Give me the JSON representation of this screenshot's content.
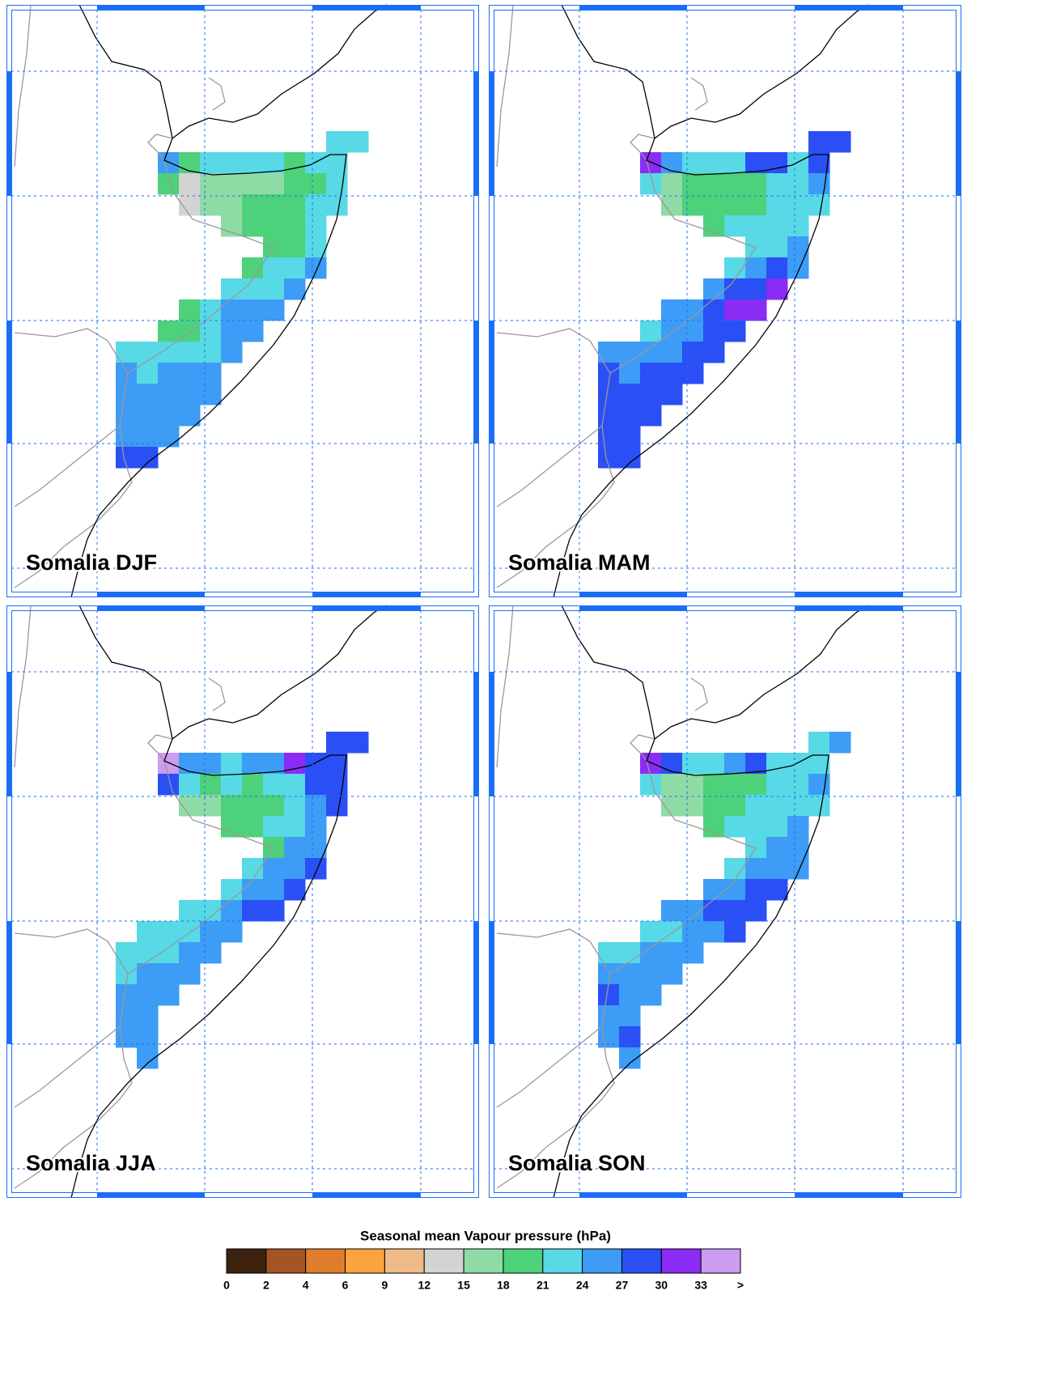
{
  "panels": [
    {
      "title": "Somalia DJF",
      "grid": [
        [
          null,
          null,
          null,
          null,
          null,
          null,
          null,
          null,
          null,
          null,
          22.5,
          22.5
        ],
        [
          null,
          null,
          25.5,
          19.5,
          22.5,
          22.5,
          22.5,
          22.5,
          19.5,
          22.5,
          22.5,
          null
        ],
        [
          null,
          null,
          19.5,
          13.5,
          16.5,
          16.5,
          16.5,
          16.5,
          19.5,
          19.5,
          22.5,
          null
        ],
        [
          null,
          null,
          null,
          13.5,
          16.5,
          16.5,
          19.5,
          19.5,
          19.5,
          22.5,
          22.5,
          null
        ],
        [
          null,
          null,
          null,
          null,
          null,
          16.5,
          19.5,
          19.5,
          19.5,
          22.5,
          null,
          null
        ],
        [
          null,
          null,
          null,
          null,
          null,
          null,
          null,
          19.5,
          19.5,
          22.5,
          null,
          null
        ],
        [
          null,
          null,
          null,
          null,
          null,
          null,
          19.5,
          22.5,
          22.5,
          25.5,
          null,
          null
        ],
        [
          null,
          null,
          null,
          null,
          null,
          22.5,
          22.5,
          22.5,
          25.5,
          null,
          null,
          null
        ],
        [
          null,
          null,
          null,
          19.5,
          22.5,
          25.5,
          25.5,
          25.5,
          null,
          null,
          null,
          null
        ],
        [
          null,
          null,
          19.5,
          19.5,
          22.5,
          25.5,
          25.5,
          null,
          null,
          null,
          null,
          null
        ],
        [
          22.5,
          22.5,
          22.5,
          22.5,
          22.5,
          25.5,
          null,
          null,
          null,
          null,
          null,
          null
        ],
        [
          25.5,
          22.5,
          25.5,
          25.5,
          25.5,
          null,
          null,
          null,
          null,
          null,
          null,
          null
        ],
        [
          25.5,
          25.5,
          25.5,
          25.5,
          25.5,
          null,
          null,
          null,
          null,
          null,
          null,
          null
        ],
        [
          25.5,
          25.5,
          25.5,
          25.5,
          null,
          null,
          null,
          null,
          null,
          null,
          null,
          null
        ],
        [
          25.5,
          25.5,
          25.5,
          null,
          null,
          null,
          null,
          null,
          null,
          null,
          null,
          null
        ],
        [
          28.5,
          28.5,
          null,
          null,
          null,
          null,
          null,
          null,
          null,
          null,
          null,
          null
        ]
      ]
    },
    {
      "title": "Somalia MAM",
      "grid": [
        [
          null,
          null,
          null,
          null,
          null,
          null,
          null,
          null,
          null,
          null,
          28.5,
          28.5
        ],
        [
          null,
          null,
          31.5,
          25.5,
          22.5,
          22.5,
          22.5,
          28.5,
          28.5,
          22.5,
          28.5,
          null
        ],
        [
          null,
          null,
          22.5,
          16.5,
          19.5,
          19.5,
          19.5,
          19.5,
          22.5,
          22.5,
          25.5,
          null
        ],
        [
          null,
          null,
          null,
          16.5,
          19.5,
          19.5,
          19.5,
          19.5,
          22.5,
          22.5,
          22.5,
          null
        ],
        [
          null,
          null,
          null,
          null,
          null,
          19.5,
          22.5,
          22.5,
          22.5,
          22.5,
          null,
          null
        ],
        [
          null,
          null,
          null,
          null,
          null,
          null,
          null,
          22.5,
          22.5,
          25.5,
          null,
          null
        ],
        [
          null,
          null,
          null,
          null,
          null,
          null,
          22.5,
          25.5,
          28.5,
          25.5,
          null,
          null
        ],
        [
          null,
          null,
          null,
          null,
          null,
          25.5,
          28.5,
          28.5,
          31.5,
          null,
          null,
          null
        ],
        [
          null,
          null,
          null,
          25.5,
          25.5,
          28.5,
          31.5,
          31.5,
          null,
          null,
          null,
          null
        ],
        [
          null,
          null,
          22.5,
          25.5,
          25.5,
          28.5,
          28.5,
          null,
          null,
          null,
          null,
          null
        ],
        [
          25.5,
          25.5,
          25.5,
          25.5,
          28.5,
          28.5,
          null,
          null,
          null,
          null,
          null,
          null
        ],
        [
          28.5,
          25.5,
          28.5,
          28.5,
          28.5,
          null,
          null,
          null,
          null,
          null,
          null,
          null
        ],
        [
          28.5,
          28.5,
          28.5,
          28.5,
          null,
          null,
          null,
          null,
          null,
          null,
          null,
          null
        ],
        [
          28.5,
          28.5,
          28.5,
          null,
          null,
          null,
          null,
          null,
          null,
          null,
          null,
          null
        ],
        [
          28.5,
          28.5,
          null,
          null,
          null,
          null,
          null,
          null,
          null,
          null,
          null,
          null
        ],
        [
          28.5,
          28.5,
          null,
          null,
          null,
          null,
          null,
          null,
          null,
          null,
          null,
          null
        ]
      ]
    },
    {
      "title": "Somalia JJA",
      "grid": [
        [
          null,
          null,
          null,
          null,
          null,
          null,
          null,
          null,
          null,
          null,
          28.5,
          28.5
        ],
        [
          null,
          null,
          34,
          25.5,
          25.5,
          22.5,
          25.5,
          25.5,
          31.5,
          28.5,
          28.5,
          null
        ],
        [
          null,
          null,
          28.5,
          22.5,
          19.5,
          22.5,
          19.5,
          22.5,
          22.5,
          28.5,
          28.5,
          null
        ],
        [
          null,
          null,
          null,
          16.5,
          16.5,
          19.5,
          19.5,
          19.5,
          22.5,
          25.5,
          28.5,
          null
        ],
        [
          null,
          null,
          null,
          null,
          null,
          19.5,
          19.5,
          22.5,
          22.5,
          25.5,
          null,
          null
        ],
        [
          null,
          null,
          null,
          null,
          null,
          null,
          null,
          19.5,
          25.5,
          25.5,
          null,
          null
        ],
        [
          null,
          null,
          null,
          null,
          null,
          null,
          22.5,
          25.5,
          25.5,
          28.5,
          null,
          null
        ],
        [
          null,
          null,
          null,
          null,
          null,
          22.5,
          25.5,
          25.5,
          28.5,
          null,
          null,
          null
        ],
        [
          null,
          null,
          null,
          22.5,
          22.5,
          25.5,
          28.5,
          28.5,
          null,
          null,
          null,
          null
        ],
        [
          null,
          22.5,
          22.5,
          22.5,
          25.5,
          25.5,
          null,
          null,
          null,
          null,
          null,
          null
        ],
        [
          22.5,
          22.5,
          22.5,
          25.5,
          25.5,
          null,
          null,
          null,
          null,
          null,
          null,
          null
        ],
        [
          22.5,
          25.5,
          25.5,
          25.5,
          null,
          null,
          null,
          null,
          null,
          null,
          null,
          null
        ],
        [
          25.5,
          25.5,
          25.5,
          null,
          null,
          null,
          null,
          null,
          null,
          null,
          null,
          null
        ],
        [
          25.5,
          25.5,
          null,
          null,
          null,
          null,
          null,
          null,
          null,
          null,
          null,
          null
        ],
        [
          25.5,
          25.5,
          null,
          null,
          null,
          null,
          null,
          null,
          null,
          null,
          null,
          null
        ],
        [
          null,
          25.5,
          null,
          null,
          null,
          null,
          null,
          null,
          null,
          null,
          null,
          null
        ]
      ]
    },
    {
      "title": "Somalia SON",
      "grid": [
        [
          null,
          null,
          null,
          null,
          null,
          null,
          null,
          null,
          null,
          null,
          22.5,
          25.5
        ],
        [
          null,
          null,
          31.5,
          28.5,
          22.5,
          22.5,
          25.5,
          28.5,
          22.5,
          22.5,
          22.5,
          null
        ],
        [
          null,
          null,
          22.5,
          16.5,
          16.5,
          19.5,
          19.5,
          19.5,
          22.5,
          22.5,
          25.5,
          null
        ],
        [
          null,
          null,
          null,
          16.5,
          16.5,
          19.5,
          19.5,
          22.5,
          22.5,
          22.5,
          22.5,
          null
        ],
        [
          null,
          null,
          null,
          null,
          null,
          19.5,
          22.5,
          22.5,
          22.5,
          25.5,
          null,
          null
        ],
        [
          null,
          null,
          null,
          null,
          null,
          null,
          null,
          22.5,
          25.5,
          25.5,
          null,
          null
        ],
        [
          null,
          null,
          null,
          null,
          null,
          null,
          22.5,
          25.5,
          25.5,
          25.5,
          null,
          null
        ],
        [
          null,
          null,
          null,
          null,
          null,
          25.5,
          25.5,
          28.5,
          28.5,
          null,
          null,
          null
        ],
        [
          null,
          null,
          null,
          25.5,
          25.5,
          28.5,
          28.5,
          28.5,
          null,
          null,
          null,
          null
        ],
        [
          null,
          null,
          22.5,
          22.5,
          25.5,
          25.5,
          28.5,
          null,
          null,
          null,
          null,
          null
        ],
        [
          22.5,
          22.5,
          25.5,
          25.5,
          25.5,
          null,
          null,
          null,
          null,
          null,
          null,
          null
        ],
        [
          25.5,
          25.5,
          25.5,
          25.5,
          null,
          null,
          null,
          null,
          null,
          null,
          null,
          null
        ],
        [
          28.5,
          25.5,
          25.5,
          null,
          null,
          null,
          null,
          null,
          null,
          null,
          null,
          null
        ],
        [
          25.5,
          25.5,
          null,
          null,
          null,
          null,
          null,
          null,
          null,
          null,
          null,
          null
        ],
        [
          25.5,
          28.5,
          null,
          null,
          null,
          null,
          null,
          null,
          null,
          null,
          null,
          null
        ],
        [
          null,
          25.5,
          null,
          null,
          null,
          null,
          null,
          null,
          null,
          null,
          null,
          null
        ]
      ]
    }
  ],
  "colorbar": {
    "title": "Seasonal mean Vapour pressure (hPa)",
    "levels": [
      0,
      2,
      4,
      6,
      9,
      12,
      15,
      18,
      21,
      24,
      27,
      30,
      33
    ],
    "overflow_label": ">",
    "colors": [
      "#3d220e",
      "#a55423",
      "#e07d2c",
      "#fba43f",
      "#eebb88",
      "#d3d3d3",
      "#8edba6",
      "#4dd17a",
      "#58d9e6",
      "#3d9cf5",
      "#2a4ff5",
      "#8a2cf5",
      "#cc9cf0"
    ]
  }
}
